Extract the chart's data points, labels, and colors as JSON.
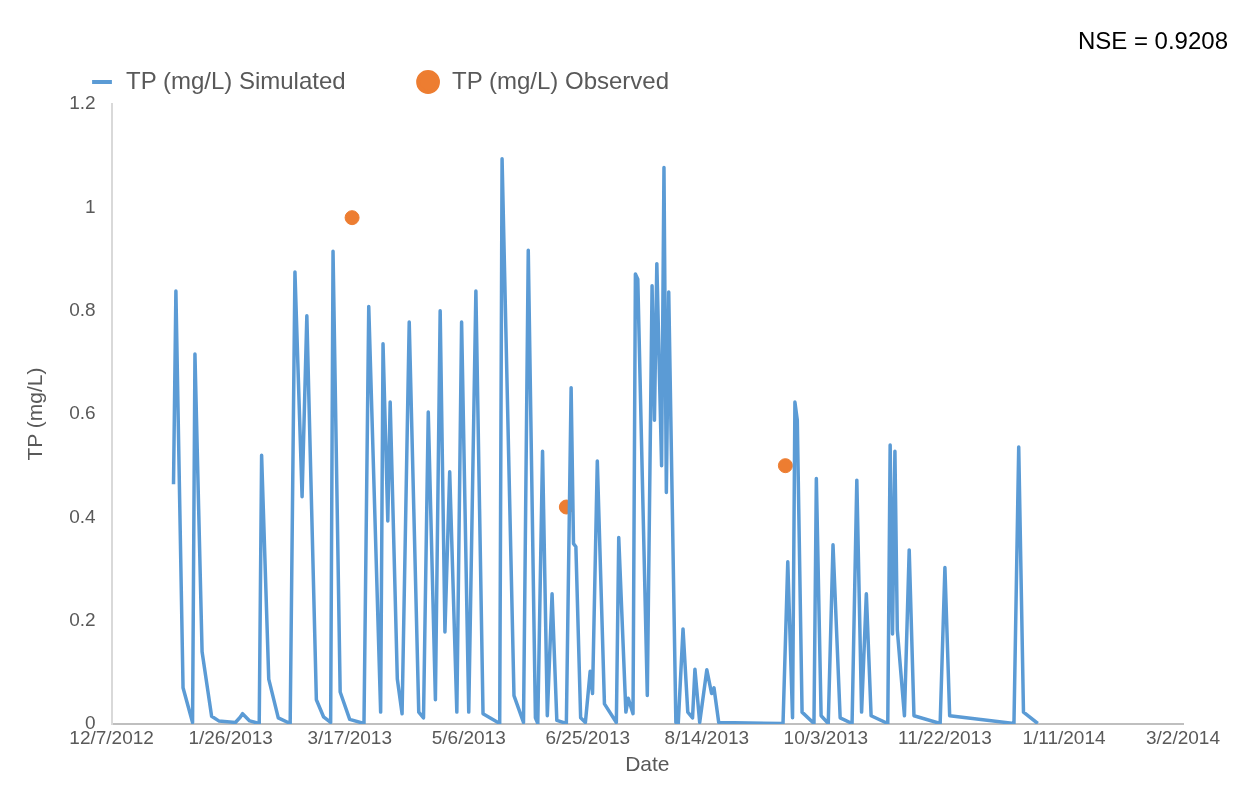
{
  "chart_data": {
    "type": "line",
    "xlabel": "Date",
    "ylabel": "TP (mg/L)",
    "annotations": [
      "NSE = 0.9208"
    ],
    "legend": "top left",
    "grid": false,
    "xlim": [
      "2012-12-07",
      "2014-03-02"
    ],
    "xticks": [
      {
        "value": "2012-12-07",
        "label": "12/7/2012"
      },
      {
        "value": "2013-01-26",
        "label": "1/26/2013"
      },
      {
        "value": "2013-03-17",
        "label": "3/17/2013"
      },
      {
        "value": "2013-05-06",
        "label": "5/6/2013"
      },
      {
        "value": "2013-06-25",
        "label": "6/25/2013"
      },
      {
        "value": "2013-08-14",
        "label": "8/14/2013"
      },
      {
        "value": "2013-10-03",
        "label": "10/3/2013"
      },
      {
        "value": "2013-11-22",
        "label": "11/22/2013"
      },
      {
        "value": "2014-01-11",
        "label": "1/11/2014"
      },
      {
        "value": "2014-03-02",
        "label": "3/2/2014"
      }
    ],
    "ylim": [
      0,
      1.2
    ],
    "yticks": [
      0,
      0.2,
      0.4,
      0.6,
      0.8,
      1,
      1.2
    ],
    "series": [
      {
        "name": "TP (mg/L) Simulated",
        "type": "line",
        "marker": "none",
        "color": "#5b9bd5",
        "x": [
          "2013-01-02",
          "2013-01-03",
          "2013-01-06",
          "2013-01-10",
          "2013-01-11",
          "2013-01-14",
          "2013-01-18",
          "2013-01-21",
          "2013-01-28",
          "2013-01-30",
          "2013-01-31",
          "2013-02-03",
          "2013-02-07",
          "2013-02-08",
          "2013-02-11",
          "2013-02-15",
          "2013-02-20",
          "2013-02-22",
          "2013-02-25",
          "2013-02-27",
          "2013-03-03",
          "2013-03-06",
          "2013-03-09",
          "2013-03-10",
          "2013-03-13",
          "2013-03-17",
          "2013-03-23",
          "2013-03-25",
          "2013-03-30",
          "2013-03-31",
          "2013-04-02",
          "2013-04-03",
          "2013-04-06",
          "2013-04-08",
          "2013-04-11",
          "2013-04-15",
          "2013-04-17",
          "2013-04-19",
          "2013-04-22",
          "2013-04-24",
          "2013-04-26",
          "2013-04-28",
          "2013-05-01",
          "2013-05-03",
          "2013-05-06",
          "2013-05-09",
          "2013-05-12",
          "2013-05-19",
          "2013-05-20",
          "2013-05-25",
          "2013-05-29",
          "2013-05-31",
          "2013-06-03",
          "2013-06-04",
          "2013-06-06",
          "2013-06-08",
          "2013-06-10",
          "2013-06-12",
          "2013-06-16",
          "2013-06-18",
          "2013-06-19",
          "2013-06-20",
          "2013-06-22",
          "2013-06-24",
          "2013-06-26",
          "2013-06-27",
          "2013-06-29",
          "2013-07-02",
          "2013-07-07",
          "2013-07-08",
          "2013-07-11",
          "2013-07-12",
          "2013-07-14",
          "2013-07-15",
          "2013-07-16",
          "2013-07-20",
          "2013-07-22",
          "2013-07-23",
          "2013-07-24",
          "2013-07-26",
          "2013-07-27",
          "2013-07-28",
          "2013-07-29",
          "2013-08-01",
          "2013-08-02",
          "2013-08-04",
          "2013-08-06",
          "2013-08-08",
          "2013-08-09",
          "2013-08-11",
          "2013-08-14",
          "2013-08-16",
          "2013-08-17",
          "2013-08-19",
          "2013-09-15",
          "2013-09-17",
          "2013-09-19",
          "2013-09-20",
          "2013-09-21",
          "2013-09-23",
          "2013-09-28",
          "2013-09-29",
          "2013-10-01",
          "2013-10-04",
          "2013-10-06",
          "2013-10-09",
          "2013-10-14",
          "2013-10-16",
          "2013-10-18",
          "2013-10-20",
          "2013-10-22",
          "2013-10-29",
          "2013-10-30",
          "2013-10-31",
          "2013-11-01",
          "2013-11-02",
          "2013-11-05",
          "2013-11-07",
          "2013-11-09",
          "2013-11-20",
          "2013-11-22",
          "2013-11-24",
          "2013-12-21",
          "2013-12-23",
          "2013-12-25",
          "2013-12-31"
        ],
        "values": [
          0.464,
          0.838,
          0.07,
          0.003,
          0.716,
          0.14,
          0.015,
          0.006,
          0.003,
          0.013,
          0.02,
          0.006,
          0.001,
          0.52,
          0.087,
          0.012,
          0.001,
          0.875,
          0.44,
          0.79,
          0.047,
          0.014,
          0.003,
          0.915,
          0.062,
          0.009,
          0.001,
          0.808,
          0.023,
          0.736,
          0.393,
          0.623,
          0.087,
          0.02,
          0.778,
          0.023,
          0.012,
          0.604,
          0.047,
          0.8,
          0.178,
          0.488,
          0.023,
          0.778,
          0.023,
          0.838,
          0.02,
          0.001,
          1.094,
          0.055,
          0.003,
          0.917,
          0.012,
          0.001,
          0.528,
          0.016,
          0.252,
          0.007,
          0.001,
          0.651,
          0.349,
          0.343,
          0.012,
          0.003,
          0.102,
          0.059,
          0.509,
          0.039,
          0.003,
          0.361,
          0.023,
          0.05,
          0.02,
          0.871,
          0.861,
          0.055,
          0.848,
          0.588,
          0.891,
          0.5,
          1.077,
          0.448,
          0.836,
          0.003,
          0.001,
          0.184,
          0.023,
          0.012,
          0.106,
          0.003,
          0.105,
          0.059,
          0.07,
          0.003,
          0.001,
          0.314,
          0.012,
          0.623,
          0.588,
          0.023,
          0.001,
          0.475,
          0.016,
          0.001,
          0.347,
          0.012,
          0.001,
          0.472,
          0.023,
          0.252,
          0.016,
          0.001,
          0.54,
          0.174,
          0.528,
          0.182,
          0.016,
          0.337,
          0.016,
          0.001,
          0.303,
          0.016,
          0.001,
          0.536,
          0.023,
          0.001
        ]
      },
      {
        "name": "TP (mg/L) Observed",
        "type": "scatter",
        "marker": "circle",
        "color": "#ed7d31",
        "x": [
          "2013-03-18",
          "2013-06-16",
          "2013-09-16"
        ],
        "values": [
          0.98,
          0.42,
          0.5
        ]
      }
    ]
  }
}
